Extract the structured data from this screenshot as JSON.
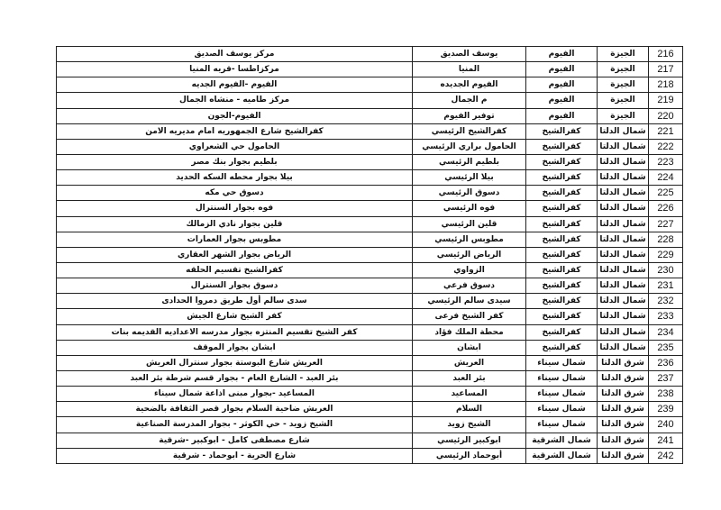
{
  "rows": [
    {
      "num": "216",
      "region": "الجيزة",
      "governorate": "الفيوم",
      "office": "يوسف الصديق",
      "address": "مركز يوسف الصديق"
    },
    {
      "num": "217",
      "region": "الجيزة",
      "governorate": "الفيوم",
      "office": "المنيا",
      "address": "مركزاطسا -قريه المنيا"
    },
    {
      "num": "218",
      "region": "الجيزة",
      "governorate": "الفيوم",
      "office": "الفيوم الجديده",
      "address": "الفيوم -الفيوم الجديه"
    },
    {
      "num": "219",
      "region": "الجيزة",
      "governorate": "الفيوم",
      "office": "م الجمال",
      "address": "مركز طاميه - منشاه الجمال"
    },
    {
      "num": "220",
      "region": "الجيزة",
      "governorate": "الفيوم",
      "office": "توفير الفيوم",
      "address": "الفيوم-الجون"
    },
    {
      "num": "221",
      "region": "شمال الدلتا",
      "governorate": "كفرالشيخ",
      "office": "كفرالشيخ الرئيسي",
      "address": "كفرالشيخ  شارع الجمهوريه امام مديريه الامن"
    },
    {
      "num": "222",
      "region": "شمال الدلتا",
      "governorate": "كفرالشيخ",
      "office": "الحامول براري الرئيسي",
      "address": "الحامول حي الشعراوي"
    },
    {
      "num": "223",
      "region": "شمال الدلتا",
      "governorate": "كفرالشيخ",
      "office": "بلطيم الرئيسي",
      "address": "بلطيم بجوار بنك مصر"
    },
    {
      "num": "224",
      "region": "شمال الدلتا",
      "governorate": "كفرالشيخ",
      "office": "بيلا الرئيسي",
      "address": "بيلا بجوار محطه السكه الحديد"
    },
    {
      "num": "225",
      "region": "شمال الدلتا",
      "governorate": "كفرالشيخ",
      "office": "دسوق الرئيسي",
      "address": "دسوق حي مكه"
    },
    {
      "num": "226",
      "region": "شمال الدلتا",
      "governorate": "كفرالشيخ",
      "office": "فوه الرئيسي",
      "address": "فوه بجوار السنترال"
    },
    {
      "num": "227",
      "region": "شمال الدلتا",
      "governorate": "كفرالشيخ",
      "office": "قلين الرئيسي",
      "address": "قلين بجوار نادي الزمالك"
    },
    {
      "num": "228",
      "region": "شمال الدلتا",
      "governorate": "كفرالشيخ",
      "office": "مطوبس الرئيسي",
      "address": "مطوبس بجوار العمارات"
    },
    {
      "num": "229",
      "region": "شمال الدلتا",
      "governorate": "كفرالشيخ",
      "office": "الرياض الرئيسي",
      "address": "الرياض بجوار الشهر العقاري"
    },
    {
      "num": "230",
      "region": "شمال الدلتا",
      "governorate": "كفرالشيخ",
      "office": "الزواوي",
      "address": "كفرالشيخ  تقسيم الحلقه"
    },
    {
      "num": "231",
      "region": "شمال الدلتا",
      "governorate": "كفرالشيخ",
      "office": "دسوق فرعي",
      "address": "دسوق بجوار السنترال"
    },
    {
      "num": "232",
      "region": "شمال الدلتا",
      "governorate": "كفرالشيخ",
      "office": "سيدى سالم الرئيسي",
      "address": "سدى سالم أول طريق دمروا الحدادى"
    },
    {
      "num": "233",
      "region": "شمال الدلتا",
      "governorate": "كفرالشيخ",
      "office": "كفر الشيخ فرعى",
      "address": "كفر الشيخ شارع الجيش"
    },
    {
      "num": "234",
      "region": "شمال الدلتا",
      "governorate": "كفرالشيخ",
      "office": "محطة الملك فؤاد",
      "address": "كفر الشيخ تقسيم المنتزه بجوار مدرسه الاعداديه القديمه بنات"
    },
    {
      "num": "235",
      "region": "شمال الدلتا",
      "governorate": "كفرالشيخ",
      "office": "ابشان",
      "address": "ابشان بجوار الموقف"
    },
    {
      "num": "236",
      "region": "شرق الدلتا",
      "governorate": "شمال سيناء",
      "office": "العريش",
      "address": "العريش شارع البوستة بجوار سنترال العريش"
    },
    {
      "num": "237",
      "region": "شرق الدلتا",
      "governorate": "شمال سيناء",
      "office": "بئر العبد",
      "address": "بئر العبد - الشارع العام - بجوار قسم شرطة بئر العبد"
    },
    {
      "num": "238",
      "region": "شرق الدلتا",
      "governorate": "شمال سيناء",
      "office": "المساعيد",
      "address": "المساعيد -بجوار مبنى اذاعة شمال سيناء"
    },
    {
      "num": "239",
      "region": "شرق الدلتا",
      "governorate": "شمال سيناء",
      "office": "السلام",
      "address": "العريش ضاحية السلام بجوار قصر الثقافة بالضحية"
    },
    {
      "num": "240",
      "region": "شرق الدلتا",
      "governorate": "شمال سيناء",
      "office": "الشيخ زويد",
      "address": "الشيخ زويد - حي الكوثر - بجوار المدرسة الصناعية"
    },
    {
      "num": "241",
      "region": "شرق الدلتا",
      "governorate": "شمال الشرقية",
      "office": "ابوكبير الرئيسي",
      "address": "شارع مصطفى كامل - ابوكبير -شرقية"
    },
    {
      "num": "242",
      "region": "شرق الدلتا",
      "governorate": "شمال الشرقية",
      "office": "أبوحماد الرئيسي",
      "address": "شارع الحرية - ابوحماد - شرقية"
    }
  ]
}
